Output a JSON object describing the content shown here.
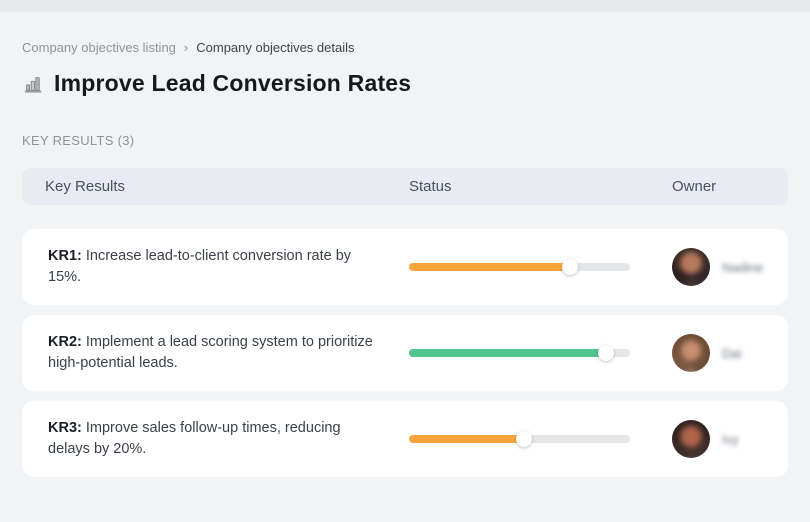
{
  "page": {
    "breadcrumb": {
      "items": [
        {
          "label": "Company objectives listing"
        },
        {
          "label": "Company objectives details"
        }
      ],
      "separator": "›"
    },
    "title": {
      "icon": "bar-chart-icon",
      "text": "Improve Lead Conversion Rates"
    },
    "section_label": "KEY RESULTS (3)"
  },
  "table": {
    "columns": [
      "Key Results",
      "Status",
      "Owner"
    ],
    "rows": [
      {
        "kr_label": "KR1:",
        "kr_text": "Increase lead-to-client conversion rate by 15%.",
        "progress_percent": 73,
        "progress_color": "#F8A43C",
        "owner_name": "Nadine"
      },
      {
        "kr_label": "KR2:",
        "kr_text": "Implement a lead scoring system to prioritize high-potential leads.",
        "progress_percent": 89,
        "progress_color": "#50C48C",
        "owner_name": "Dai"
      },
      {
        "kr_label": "KR3:",
        "kr_text": "Improve sales follow-up times, reducing delays by 20%.",
        "progress_percent": 52,
        "progress_color": "#F8A43C",
        "owner_name": "Ivy"
      }
    ]
  },
  "colors": {
    "accent_orange": "#F8A43C",
    "accent_green": "#50C48C",
    "progress_track": "#E5E6E8",
    "header_bg": "#E8EBF1",
    "page_bg": "#F2F3F5",
    "card_bg": "#FFFFFF"
  }
}
